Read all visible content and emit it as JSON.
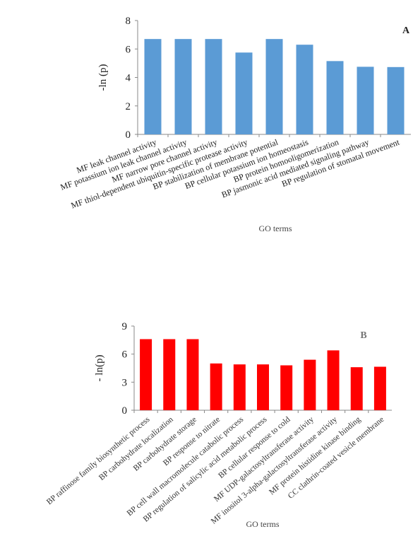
{
  "chart_data": [
    {
      "type": "bar",
      "panel_label": "A",
      "x_label": "GO terms",
      "y_label": "-ln (p)",
      "color": "#5b9bd5",
      "categories": [
        "MF leak channel activity",
        "MF potassium ion leak channel activity",
        "MF narrow pore channel activity",
        "MF thiol-dependent ubiquitin-specific protease activity",
        "BP stabilization of membrane potential",
        "BP cellular potassium ion homeostasis",
        "BP protein homooligomerization",
        "BP jasmonic acid mediated signaling pathway",
        "BP regulation of stomatal movement"
      ],
      "values": [
        6.7,
        6.7,
        6.7,
        5.75,
        6.7,
        6.3,
        5.15,
        4.75,
        4.73
      ],
      "ylim": [
        0,
        8
      ],
      "yticks": [
        0,
        2,
        4,
        6,
        8
      ]
    },
    {
      "type": "bar",
      "panel_label": "B",
      "x_label": "GO terms",
      "y_label": "- ln(p)",
      "color": "#ff0000",
      "categories": [
        "BP raffinose family  biosynthetic process",
        "BP carbohydrate localization",
        "BP carbohydrate storage",
        "BP response to nitrate",
        "BP cell wall macromolecule catabolic process",
        "BP regulation of salicylic acid metabolic process",
        "BP cellular response to cold",
        "MF UDP-galactosyltransferase activity",
        "MF inositol 3-alpha-galactosyltransferase activity",
        "MF protein histidine kinase binding",
        "CC clathrin-coated vesicle membrane"
      ],
      "values": [
        7.6,
        7.6,
        7.6,
        5.0,
        4.9,
        4.9,
        4.8,
        5.4,
        6.4,
        4.6,
        4.65
      ],
      "ylim": [
        0,
        9
      ],
      "yticks": [
        0,
        3,
        6,
        9
      ]
    }
  ]
}
